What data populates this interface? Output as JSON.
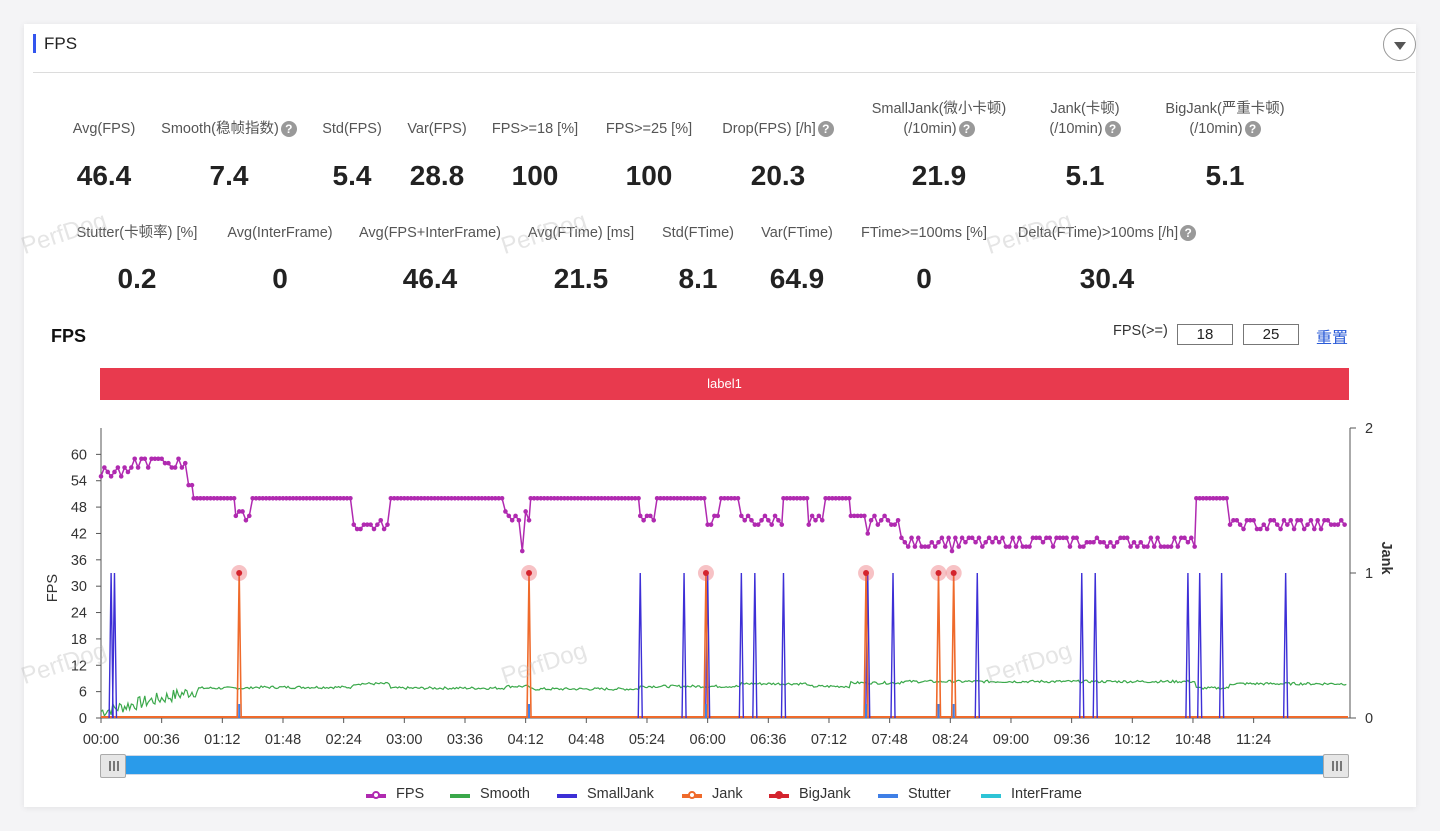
{
  "section": {
    "title": "FPS"
  },
  "metrics_row1": [
    {
      "label": "Avg(FPS)",
      "value": "46.4",
      "help": false
    },
    {
      "label": "Smooth(稳帧指数)",
      "value": "7.4",
      "help": true
    },
    {
      "label": "Std(FPS)",
      "value": "5.4",
      "help": false
    },
    {
      "label": "Var(FPS)",
      "value": "28.8",
      "help": false
    },
    {
      "label": "FPS>=18 [%]",
      "value": "100",
      "help": false
    },
    {
      "label": "FPS>=25 [%]",
      "value": "100",
      "help": false
    },
    {
      "label": "Drop(FPS) [/h]",
      "value": "20.3",
      "help": true
    },
    {
      "label": "SmallJank(微小卡顿)",
      "label2": "(/10min)",
      "value": "21.9",
      "help": true
    },
    {
      "label": "Jank(卡顿)",
      "label2": "(/10min)",
      "value": "5.1",
      "help": true
    },
    {
      "label": "BigJank(严重卡顿)",
      "label2": "(/10min)",
      "value": "5.1",
      "help": true
    }
  ],
  "metrics_row2": [
    {
      "label": "Stutter(卡顿率) [%]",
      "value": "0.2",
      "help": false
    },
    {
      "label": "Avg(InterFrame)",
      "value": "0",
      "help": false
    },
    {
      "label": "Avg(FPS+InterFrame)",
      "value": "46.4",
      "help": false
    },
    {
      "label": "Avg(FTime) [ms]",
      "value": "21.5",
      "help": false
    },
    {
      "label": "Std(FTime)",
      "value": "8.1",
      "help": false
    },
    {
      "label": "Var(FTime)",
      "value": "64.9",
      "help": false
    },
    {
      "label": "FTime>=100ms [%]",
      "value": "0",
      "help": false
    },
    {
      "label": "Delta(FTime)>100ms [/h]",
      "value": "30.4",
      "help": true
    }
  ],
  "help_glyph": "?",
  "watermark_text": "PerfDog",
  "chart_header": {
    "title": "FPS",
    "threshold_label": "FPS(>=)",
    "threshold1": "18",
    "threshold2": "25",
    "reset_label": "重置"
  },
  "label_band": {
    "text": "label1",
    "color": "#e83a4e"
  },
  "chart_data": {
    "type": "line",
    "title": "",
    "ylabel": "FPS",
    "y2label": "Jank",
    "ylim": [
      0,
      66
    ],
    "y2lim": [
      0,
      2
    ],
    "yticks": [
      0,
      6,
      12,
      18,
      24,
      30,
      36,
      42,
      48,
      54,
      60
    ],
    "y2ticks": [
      0,
      1,
      2
    ],
    "x_range_seconds": [
      0,
      740
    ],
    "xticks": [
      "00:00",
      "00:36",
      "01:12",
      "01:48",
      "02:24",
      "03:00",
      "03:36",
      "04:12",
      "04:48",
      "05:24",
      "06:00",
      "06:36",
      "07:12",
      "07:48",
      "08:24",
      "09:00",
      "09:36",
      "10:12",
      "10:48",
      "11:24"
    ],
    "colors": {
      "FPS": "#b02ab0",
      "Smooth": "#3aa84a",
      "SmallJank": "#3d2fd6",
      "Jank": "#ef6a2b",
      "BigJank": "#d4242e",
      "Stutter": "#3f7fe6",
      "InterFrame": "#2ec4d6"
    },
    "fps_segments": [
      {
        "t0": 0,
        "t1": 20,
        "v": 56,
        "noisy": true
      },
      {
        "t0": 20,
        "t1": 52,
        "v": 58,
        "noisy": true
      },
      {
        "t0": 52,
        "t1": 55,
        "v": 54,
        "noisy": true
      },
      {
        "t0": 55,
        "t1": 80,
        "v": 50
      },
      {
        "t0": 80,
        "t1": 90,
        "v": 46,
        "noisy": true
      },
      {
        "t0": 90,
        "t1": 150,
        "v": 50
      },
      {
        "t0": 150,
        "t1": 172,
        "v": 44,
        "noisy": true
      },
      {
        "t0": 172,
        "t1": 240,
        "v": 50
      },
      {
        "t0": 240,
        "t1": 255,
        "v": 46,
        "noisy": true
      },
      {
        "t0": 255,
        "t1": 320,
        "v": 50
      },
      {
        "t0": 320,
        "t1": 330,
        "v": 45,
        "noisy": true
      },
      {
        "t0": 330,
        "t1": 360,
        "v": 50
      },
      {
        "t0": 360,
        "t1": 368,
        "v": 45,
        "noisy": true
      },
      {
        "t0": 368,
        "t1": 380,
        "v": 50
      },
      {
        "t0": 380,
        "t1": 405,
        "v": 45,
        "noisy": true
      },
      {
        "t0": 405,
        "t1": 420,
        "v": 50
      },
      {
        "t0": 420,
        "t1": 430,
        "v": 45,
        "noisy": true
      },
      {
        "t0": 430,
        "t1": 445,
        "v": 50
      },
      {
        "t0": 445,
        "t1": 475,
        "v": 45,
        "noisy": true
      },
      {
        "t0": 475,
        "t1": 650,
        "v": 40,
        "noisy": true
      },
      {
        "t0": 650,
        "t1": 670,
        "v": 50
      },
      {
        "t0": 670,
        "t1": 740,
        "v": 44,
        "noisy": true
      }
    ],
    "fps_dips": [
      {
        "t": 78,
        "v": 36
      },
      {
        "t": 250,
        "v": 38
      },
      {
        "t": 365,
        "v": 44
      },
      {
        "t": 455,
        "v": 42
      },
      {
        "t": 505,
        "v": 38
      },
      {
        "t": 510,
        "v": 38
      }
    ],
    "smooth_levels": [
      {
        "t0": 0,
        "t1": 60,
        "v": "ramp"
      },
      {
        "t0": 60,
        "t1": 90,
        "v": 6.8
      },
      {
        "t0": 90,
        "t1": 150,
        "v": 7.0
      },
      {
        "t0": 150,
        "t1": 172,
        "v": 7.8
      },
      {
        "t0": 172,
        "t1": 240,
        "v": 6.8
      },
      {
        "t0": 240,
        "t1": 255,
        "v": 7.2
      },
      {
        "t0": 255,
        "t1": 320,
        "v": 6.6
      },
      {
        "t0": 320,
        "t1": 380,
        "v": 7.2
      },
      {
        "t0": 380,
        "t1": 420,
        "v": 7.8
      },
      {
        "t0": 420,
        "t1": 445,
        "v": 7.2
      },
      {
        "t0": 445,
        "t1": 475,
        "v": 8.0
      },
      {
        "t0": 475,
        "t1": 650,
        "v": 8.3
      },
      {
        "t0": 650,
        "t1": 670,
        "v": 6.8
      },
      {
        "t0": 670,
        "t1": 740,
        "v": 7.8
      }
    ],
    "smalljank_times": [
      6,
      8,
      320,
      346,
      360,
      380,
      388,
      405,
      455,
      470,
      520,
      582,
      590,
      645,
      652,
      665,
      703
    ],
    "bigjank_times": [
      82,
      254,
      359,
      454,
      497,
      506
    ],
    "legend": [
      "FPS",
      "Smooth",
      "SmallJank",
      "Jank",
      "BigJank",
      "Stutter",
      "InterFrame"
    ]
  }
}
